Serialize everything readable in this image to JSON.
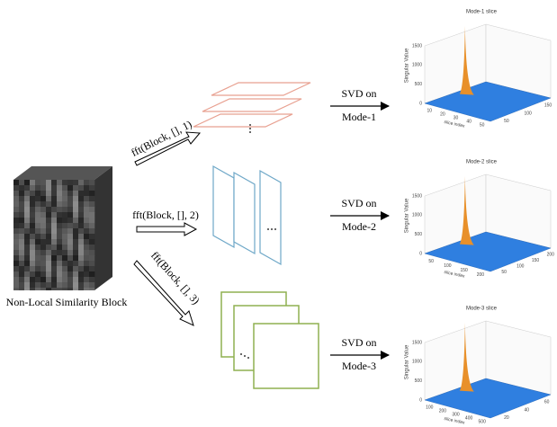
{
  "block": {
    "label": "Non-Local Similarity Block"
  },
  "branches": [
    {
      "fft": "fft(Block, [], 1)",
      "svd": "SVD on",
      "mode": "Mode-1",
      "plot": {
        "title": "Mode-1 slice",
        "zlabel": "Singular Value",
        "xlabel": "slice index",
        "zticks": [
          "1500",
          "1000",
          "500",
          "0"
        ],
        "xticks": [
          "10",
          "20",
          "30",
          "40",
          "50"
        ],
        "yticks": [
          "50",
          "100",
          "150"
        ]
      }
    },
    {
      "fft": "fft(Block, [], 2)",
      "svd": "SVD on",
      "mode": "Mode-2",
      "plot": {
        "title": "Mode-2 slice",
        "zlabel": "Singular Value",
        "xlabel": "slice index",
        "zticks": [
          "1500",
          "1000",
          "500",
          "0"
        ],
        "xticks": [
          "50",
          "100",
          "150",
          "200"
        ],
        "yticks": [
          "50",
          "100",
          "150",
          "200"
        ]
      }
    },
    {
      "fft": "fft(Block, [], 3)",
      "svd": "SVD on",
      "mode": "Mode-3",
      "plot": {
        "title": "Mode-3 slice",
        "zlabel": "Singular Value",
        "xlabel": "slice index",
        "zticks": [
          "1500",
          "1000",
          "500",
          "0"
        ],
        "xticks": [
          "100",
          "200",
          "300",
          "400",
          "500"
        ],
        "yticks": [
          "20",
          "40",
          "60"
        ]
      }
    }
  ]
}
